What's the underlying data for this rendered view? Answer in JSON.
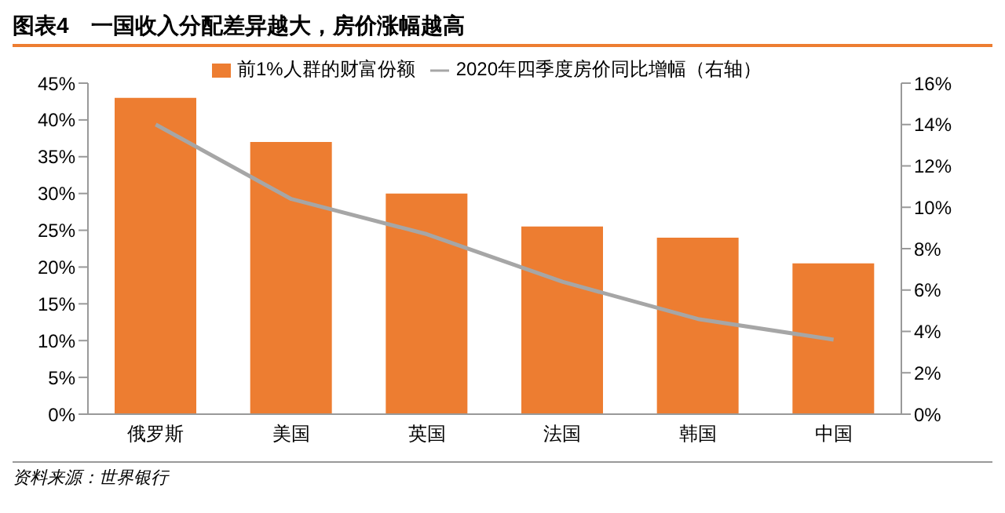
{
  "chart_data": {
    "type": "bar",
    "title": "图表4　一国收入分配差异越大，房价涨幅越高",
    "categories": [
      "俄罗斯",
      "美国",
      "英国",
      "法国",
      "韩国",
      "中国"
    ],
    "series": [
      {
        "name": "前1%人群的财富份额",
        "color": "#ed7d31",
        "values": [
          43,
          37,
          30,
          25.5,
          24,
          20.5
        ]
      },
      {
        "name": "2020年四季度房价同比增幅（右轴）",
        "type": "line",
        "axis": "y2",
        "color": "#a6a6a6",
        "values": [
          14,
          10.4,
          8.7,
          6.4,
          4.6,
          3.6
        ]
      }
    ],
    "ylim": [
      0,
      45
    ],
    "yticks": [
      {
        "value": 0,
        "label": "0%"
      },
      {
        "value": 5,
        "label": "5%"
      },
      {
        "value": 10,
        "label": "10%"
      },
      {
        "value": 15,
        "label": "15%"
      },
      {
        "value": 20,
        "label": "20%"
      },
      {
        "value": 25,
        "label": "25%"
      },
      {
        "value": 30,
        "label": "30%"
      },
      {
        "value": 35,
        "label": "35%"
      },
      {
        "value": 40,
        "label": "40%"
      },
      {
        "value": 45,
        "label": "45%"
      }
    ],
    "y2lim": [
      0,
      16
    ],
    "y2ticks": [
      {
        "value": 0,
        "label": "0%"
      },
      {
        "value": 2,
        "label": "2%"
      },
      {
        "value": 4,
        "label": "4%"
      },
      {
        "value": 6,
        "label": "6%"
      },
      {
        "value": 8,
        "label": "8%"
      },
      {
        "value": 10,
        "label": "10%"
      },
      {
        "value": 12,
        "label": "12%"
      },
      {
        "value": 14,
        "label": "14%"
      },
      {
        "value": 16,
        "label": "16%"
      }
    ],
    "legend": "top",
    "marker": "none",
    "line_style": "solid",
    "annotations": [
      "资料来源：世界银行"
    ]
  }
}
